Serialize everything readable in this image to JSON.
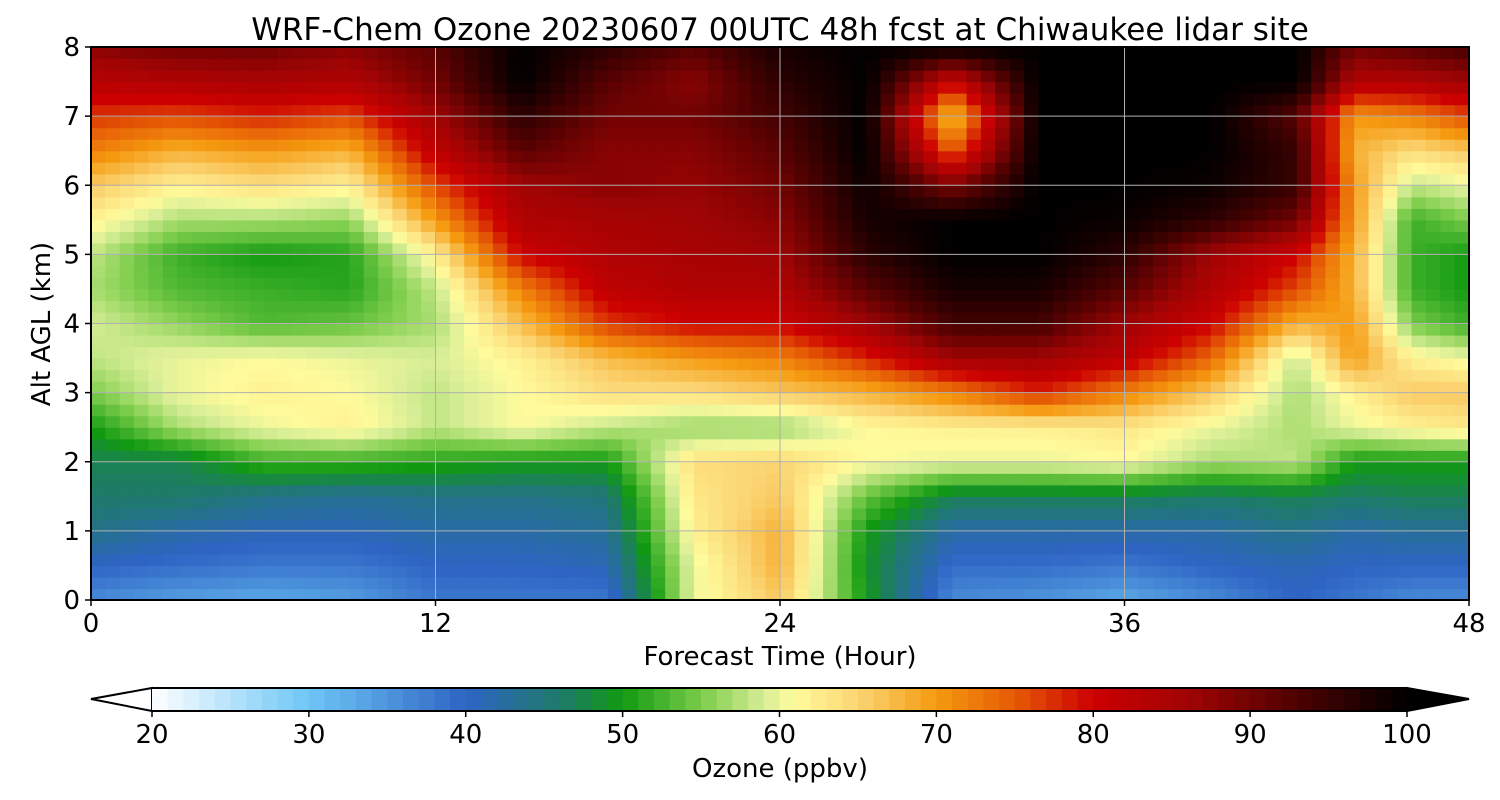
{
  "chart_data": {
    "type": "heatmap",
    "title": "WRF-Chem Ozone  20230607 00UTC 48h fcst at Chiwaukee lidar site",
    "xlabel": "Forecast Time (Hour)",
    "ylabel": "Alt AGL (km)",
    "xlim": [
      0,
      48
    ],
    "ylim": [
      0,
      8
    ],
    "xticks": [
      "0",
      "12",
      "24",
      "36",
      "48"
    ],
    "yticks": [
      "0",
      "1",
      "2",
      "3",
      "4",
      "5",
      "6",
      "7",
      "8"
    ],
    "grid": true,
    "colorbar": {
      "label": "Ozone  (ppbv)",
      "range": [
        20,
        100
      ],
      "ticks": [
        "20",
        "30",
        "40",
        "50",
        "60",
        "70",
        "80",
        "90",
        "100"
      ],
      "extend": "both",
      "colors": [
        {
          "v": 20,
          "c": "#ffffff"
        },
        {
          "v": 30,
          "c": "#6ec6f5"
        },
        {
          "v": 40,
          "c": "#2e64c4"
        },
        {
          "v": 46,
          "c": "#1e7a6a"
        },
        {
          "v": 50,
          "c": "#119a11"
        },
        {
          "v": 55,
          "c": "#7bcc4a"
        },
        {
          "v": 59,
          "c": "#d8ee96"
        },
        {
          "v": 61,
          "c": "#fffb9c"
        },
        {
          "v": 65,
          "c": "#fbd472"
        },
        {
          "v": 70,
          "c": "#f59a10"
        },
        {
          "v": 75,
          "c": "#e55a05"
        },
        {
          "v": 80,
          "c": "#cc0000"
        },
        {
          "v": 86,
          "c": "#a10404"
        },
        {
          "v": 93,
          "c": "#4e0101"
        },
        {
          "v": 100,
          "c": "#000000"
        }
      ]
    },
    "x": [
      0,
      3,
      6,
      9,
      12,
      15,
      18,
      21,
      24,
      27,
      30,
      33,
      36,
      39,
      42,
      44,
      46,
      48
    ],
    "y": [
      0,
      0.5,
      1,
      1.5,
      2,
      2.5,
      3,
      3.5,
      4,
      4.5,
      5,
      5.5,
      6,
      6.5,
      7,
      7.5,
      8
    ],
    "z": [
      [
        36,
        34,
        33,
        34,
        38,
        38,
        38,
        60,
        66,
        50,
        36,
        35,
        33,
        36,
        40,
        38,
        36,
        36
      ],
      [
        40,
        39,
        38,
        38,
        40,
        40,
        41,
        60,
        68,
        49,
        39,
        39,
        38,
        40,
        41,
        40,
        40,
        40
      ],
      [
        44,
        42,
        41,
        41,
        42,
        42,
        43,
        62,
        68,
        50,
        42,
        42,
        42,
        42,
        44,
        42,
        43,
        43
      ],
      [
        46,
        46,
        44,
        43,
        44,
        44,
        45,
        63,
        66,
        54,
        47,
        47,
        47,
        46,
        47,
        46,
        47,
        47
      ],
      [
        47,
        47,
        52,
        52,
        51,
        50,
        50,
        64,
        65,
        61,
        60,
        60,
        61,
        57,
        58,
        50,
        50,
        50
      ],
      [
        50,
        57,
        60,
        62,
        58,
        61,
        58,
        56,
        56,
        61,
        62,
        62,
        63,
        60,
        57,
        60,
        62,
        63
      ],
      [
        55,
        60,
        62,
        61,
        58,
        61,
        64,
        64,
        66,
        68,
        72,
        78,
        72,
        66,
        57,
        62,
        66,
        66
      ],
      [
        58,
        60,
        61,
        60,
        59,
        62,
        67,
        70,
        72,
        78,
        86,
        86,
        82,
        74,
        58,
        70,
        62,
        60
      ],
      [
        59,
        56,
        53,
        54,
        57,
        67,
        77,
        80,
        80,
        86,
        94,
        94,
        86,
        80,
        68,
        70,
        55,
        52
      ],
      [
        57,
        53,
        52,
        51,
        58,
        72,
        82,
        84,
        84,
        92,
        98,
        98,
        92,
        84,
        76,
        68,
        52,
        50
      ],
      [
        58,
        52,
        50,
        51,
        62,
        80,
        84,
        85,
        86,
        96,
        100,
        100,
        96,
        86,
        80,
        68,
        52,
        50
      ],
      [
        62,
        57,
        57,
        56,
        70,
        84,
        85,
        86,
        88,
        98,
        100,
        100,
        99,
        96,
        90,
        70,
        52,
        55
      ],
      [
        66,
        62,
        64,
        62,
        76,
        86,
        88,
        87,
        90,
        99,
        89,
        100,
        100,
        99,
        95,
        70,
        58,
        60
      ],
      [
        72,
        68,
        70,
        68,
        82,
        92,
        88,
        88,
        92,
        100,
        74,
        100,
        100,
        100,
        95,
        68,
        64,
        66
      ],
      [
        77,
        76,
        78,
        76,
        86,
        96,
        90,
        90,
        94,
        100,
        66,
        100,
        100,
        100,
        92,
        70,
        72,
        76
      ],
      [
        83,
        84,
        85,
        84,
        90,
        100,
        92,
        88,
        96,
        100,
        80,
        100,
        100,
        100,
        100,
        84,
        84,
        86
      ],
      [
        88,
        90,
        90,
        88,
        92,
        100,
        96,
        92,
        98,
        100,
        100,
        100,
        100,
        100,
        100,
        90,
        92,
        94
      ]
    ]
  }
}
